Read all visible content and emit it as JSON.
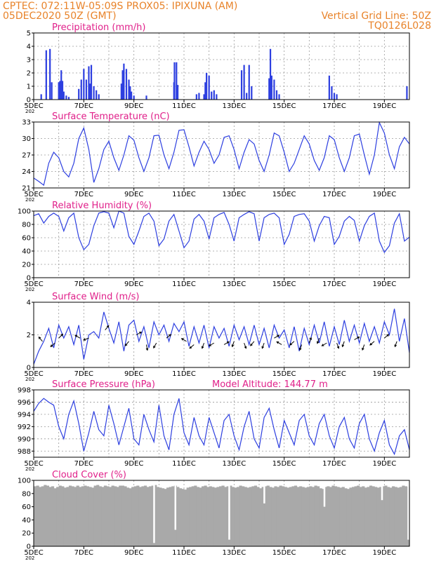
{
  "header": {
    "line1_left": "CPTEC:   072:11W-05:09S   PROX05: IPIXUNA (AM)",
    "line2_left": "05DEC2020 50Z (GMT)",
    "line2_right": "Vertical Grid Line: 50Z",
    "line3_right": "TQ0126L028"
  },
  "colors": {
    "header": "#e8832a",
    "title": "#e0208a",
    "series": "#2d3fe0",
    "cloud": "#a9a9a9",
    "grid": "#9a9a9a"
  },
  "x_axis": {
    "labels": [
      "5DEC",
      "7DEC",
      "9DEC",
      "11DEC",
      "13DEC",
      "15DEC",
      "17DEC",
      "19DEC"
    ],
    "year_fragment": "202",
    "start_day": 5,
    "end_day": 20
  },
  "chart_data": [
    {
      "type": "bar",
      "id": "precip",
      "title": "Precipitation (mm/h)",
      "ylim": [
        0,
        5
      ],
      "yticks": [
        0,
        1,
        2,
        3,
        4,
        5
      ],
      "x": [
        5.3,
        5.5,
        5.65,
        5.72,
        6.0,
        6.05,
        6.1,
        6.15,
        6.2,
        6.3,
        6.4,
        6.8,
        6.9,
        7.0,
        7.1,
        7.2,
        7.25,
        7.3,
        7.4,
        7.5,
        7.6,
        8.5,
        8.55,
        8.6,
        8.7,
        8.8,
        8.85,
        8.9,
        9.0,
        9.5,
        10.6,
        10.62,
        10.7,
        10.75,
        11.5,
        11.6,
        11.8,
        11.85,
        11.9,
        12.0,
        12.1,
        12.2,
        12.3,
        13.3,
        13.4,
        13.5,
        13.6,
        13.7,
        14.4,
        14.45,
        14.5,
        14.6,
        14.7,
        14.8,
        16.8,
        16.9,
        17.0,
        17.1,
        19.9
      ],
      "values": [
        0.4,
        3.7,
        3.8,
        1.3,
        1.3,
        1.4,
        2.2,
        1.4,
        0.6,
        0.3,
        0.2,
        0.8,
        1.5,
        2.3,
        1.5,
        2.5,
        1.2,
        2.6,
        1.0,
        0.7,
        0.4,
        1.2,
        2.2,
        2.7,
        2.3,
        1.5,
        1.0,
        0.6,
        0.3,
        0.3,
        1.3,
        2.8,
        2.8,
        1.1,
        0.4,
        0.5,
        0.4,
        1.3,
        2.0,
        1.8,
        0.6,
        0.7,
        0.4,
        2.2,
        2.6,
        0.5,
        2.6,
        1.0,
        1.6,
        3.8,
        1.8,
        1.5,
        0.7,
        0.4,
        1.8,
        1.0,
        0.5,
        0.4,
        1.0
      ]
    },
    {
      "type": "line",
      "id": "temperature",
      "title": "Surface Temperature (nC)",
      "ylim": [
        21,
        33
      ],
      "yticks": [
        21,
        24,
        27,
        30,
        33
      ],
      "x": [
        5.0,
        5.2,
        5.4,
        5.6,
        5.8,
        6.0,
        6.2,
        6.4,
        6.6,
        6.8,
        7.0,
        7.2,
        7.4,
        7.6,
        7.8,
        8.0,
        8.2,
        8.4,
        8.6,
        8.8,
        9.0,
        9.2,
        9.4,
        9.6,
        9.8,
        10.0,
        10.2,
        10.4,
        10.6,
        10.8,
        11.0,
        11.2,
        11.4,
        11.6,
        11.8,
        12.0,
        12.2,
        12.4,
        12.6,
        12.8,
        13.0,
        13.2,
        13.4,
        13.6,
        13.8,
        14.0,
        14.2,
        14.4,
        14.6,
        14.8,
        15.0,
        15.2,
        15.4,
        15.6,
        15.8,
        16.0,
        16.2,
        16.4,
        16.6,
        16.8,
        17.0,
        17.2,
        17.4,
        17.6,
        17.8,
        18.0,
        18.2,
        18.4,
        18.6,
        18.8,
        19.0,
        19.2,
        19.4,
        19.6,
        19.8,
        20.0
      ],
      "values": [
        22.8,
        22.2,
        21.5,
        25.5,
        27.5,
        26.5,
        24.0,
        23.0,
        25.5,
        30.0,
        31.9,
        28.0,
        22.0,
        24.5,
        28.0,
        29.5,
        26.5,
        24.2,
        27.0,
        30.5,
        29.7,
        26.5,
        24.0,
        26.5,
        30.5,
        30.6,
        27.0,
        24.5,
        27.5,
        31.5,
        31.6,
        28.5,
        25.0,
        27.5,
        29.5,
        28.0,
        25.5,
        27.0,
        30.2,
        30.5,
        28.0,
        24.5,
        27.5,
        29.8,
        29.0,
        26.0,
        24.0,
        27.0,
        31.0,
        30.5,
        27.5,
        24.0,
        25.5,
        28.0,
        30.5,
        29.0,
        26.0,
        24.2,
        26.5,
        30.5,
        29.8,
        26.5,
        24.0,
        26.5,
        30.5,
        30.8,
        27.0,
        23.5,
        27.0,
        32.9,
        31.0,
        27.0,
        24.5,
        28.5,
        30.2,
        29.0
      ]
    },
    {
      "type": "line",
      "id": "humidity",
      "title": "Relative Humidity (%)",
      "ylim": [
        0,
        100
      ],
      "yticks": [
        0,
        20,
        40,
        60,
        80,
        100
      ],
      "x": [
        5.0,
        5.2,
        5.4,
        5.6,
        5.8,
        6.0,
        6.2,
        6.4,
        6.6,
        6.8,
        7.0,
        7.2,
        7.4,
        7.6,
        7.8,
        8.0,
        8.2,
        8.4,
        8.6,
        8.8,
        9.0,
        9.2,
        9.4,
        9.6,
        9.8,
        10.0,
        10.2,
        10.4,
        10.6,
        10.8,
        11.0,
        11.2,
        11.4,
        11.6,
        11.8,
        12.0,
        12.2,
        12.4,
        12.6,
        12.8,
        13.0,
        13.2,
        13.4,
        13.6,
        13.8,
        14.0,
        14.2,
        14.4,
        14.6,
        14.8,
        15.0,
        15.2,
        15.4,
        15.6,
        15.8,
        16.0,
        16.2,
        16.4,
        16.6,
        16.8,
        17.0,
        17.2,
        17.4,
        17.6,
        17.8,
        18.0,
        18.2,
        18.4,
        18.6,
        18.8,
        19.0,
        19.2,
        19.4,
        19.6,
        19.8,
        20.0
      ],
      "values": [
        93,
        96,
        82,
        92,
        97,
        92,
        70,
        90,
        97,
        60,
        42,
        50,
        78,
        97,
        99,
        97,
        75,
        100,
        97,
        62,
        50,
        70,
        92,
        97,
        85,
        48,
        58,
        85,
        95,
        70,
        45,
        55,
        88,
        95,
        85,
        58,
        90,
        95,
        98,
        80,
        55,
        90,
        95,
        99,
        96,
        55,
        90,
        95,
        97,
        90,
        50,
        65,
        92,
        95,
        96,
        85,
        55,
        78,
        92,
        90,
        50,
        62,
        85,
        92,
        86,
        55,
        78,
        92,
        97,
        55,
        38,
        48,
        82,
        96,
        55,
        61
      ]
    },
    {
      "type": "line",
      "id": "wind",
      "title": "Surface Wind (m/s)",
      "ylim": [
        0,
        4
      ],
      "yticks": [
        0,
        2,
        4
      ],
      "x": [
        5.0,
        5.2,
        5.4,
        5.6,
        5.8,
        6.0,
        6.2,
        6.4,
        6.6,
        6.8,
        7.0,
        7.2,
        7.4,
        7.6,
        7.8,
        8.0,
        8.2,
        8.4,
        8.6,
        8.8,
        9.0,
        9.2,
        9.4,
        9.6,
        9.8,
        10.0,
        10.2,
        10.4,
        10.6,
        10.8,
        11.0,
        11.2,
        11.4,
        11.6,
        11.8,
        12.0,
        12.2,
        12.4,
        12.6,
        12.8,
        13.0,
        13.2,
        13.4,
        13.6,
        13.8,
        14.0,
        14.2,
        14.4,
        14.6,
        14.8,
        15.0,
        15.2,
        15.4,
        15.6,
        15.8,
        16.0,
        16.2,
        16.4,
        16.6,
        16.8,
        17.0,
        17.2,
        17.4,
        17.6,
        17.8,
        18.0,
        18.2,
        18.4,
        18.6,
        18.8,
        19.0,
        19.2,
        19.4,
        19.6,
        19.8,
        20.0
      ],
      "values": [
        0.2,
        1.0,
        1.6,
        2.4,
        1.2,
        2.6,
        1.8,
        2.5,
        1.4,
        2.6,
        0.5,
        2.0,
        2.2,
        1.8,
        3.4,
        2.4,
        1.5,
        2.8,
        1.0,
        2.6,
        2.9,
        1.6,
        2.5,
        1.2,
        2.8,
        2.0,
        2.6,
        1.6,
        2.7,
        2.2,
        2.8,
        1.3,
        2.5,
        1.5,
        2.6,
        1.2,
        2.5,
        1.8,
        2.4,
        1.3,
        2.6,
        1.7,
        2.5,
        1.4,
        2.6,
        1.4,
        2.4,
        1.2,
        2.6,
        1.8,
        2.3,
        1.2,
        2.5,
        1.0,
        2.4,
        1.4,
        2.6,
        1.5,
        2.8,
        1.3,
        2.5,
        1.4,
        2.9,
        1.6,
        2.6,
        1.5,
        2.7,
        1.6,
        2.5,
        1.5,
        2.8,
        2.0,
        3.6,
        1.6,
        3.0,
        0.9
      ],
      "arrows": [
        {
          "day": 5.35,
          "speed": 1.6,
          "to_deg": 320
        },
        {
          "day": 5.85,
          "speed": 1.5,
          "to_deg": 230
        },
        {
          "day": 6.0,
          "speed": 1.8,
          "to_deg": 45
        },
        {
          "day": 6.85,
          "speed": 1.8,
          "to_deg": 300
        },
        {
          "day": 7.2,
          "speed": 1.8,
          "to_deg": 250
        },
        {
          "day": 7.85,
          "speed": 2.3,
          "to_deg": 40
        },
        {
          "day": 8.8,
          "speed": 1.6,
          "to_deg": 220
        },
        {
          "day": 9.1,
          "speed": 2.0,
          "to_deg": 60
        },
        {
          "day": 9.5,
          "speed": 1.4,
          "to_deg": 170
        },
        {
          "day": 9.9,
          "speed": 1.5,
          "to_deg": 210
        },
        {
          "day": 10.3,
          "speed": 1.8,
          "to_deg": 50
        },
        {
          "day": 11.1,
          "speed": 1.6,
          "to_deg": 300
        },
        {
          "day": 11.4,
          "speed": 1.4,
          "to_deg": 230
        },
        {
          "day": 11.8,
          "speed": 1.5,
          "to_deg": 200
        },
        {
          "day": 12.2,
          "speed": 1.5,
          "to_deg": 240
        },
        {
          "day": 12.6,
          "speed": 1.4,
          "to_deg": 60
        },
        {
          "day": 13.0,
          "speed": 1.6,
          "to_deg": 200
        },
        {
          "day": 13.4,
          "speed": 1.5,
          "to_deg": 160
        },
        {
          "day": 13.8,
          "speed": 1.6,
          "to_deg": 220
        },
        {
          "day": 14.2,
          "speed": 1.5,
          "to_deg": 200
        },
        {
          "day": 14.6,
          "speed": 1.8,
          "to_deg": 60
        },
        {
          "day": 14.9,
          "speed": 1.4,
          "to_deg": 300
        },
        {
          "day": 15.4,
          "speed": 1.6,
          "to_deg": 230
        },
        {
          "day": 15.7,
          "speed": 1.4,
          "to_deg": 200
        },
        {
          "day": 16.0,
          "speed": 1.5,
          "to_deg": 20
        },
        {
          "day": 16.4,
          "speed": 1.8,
          "to_deg": 200
        },
        {
          "day": 16.7,
          "speed": 1.5,
          "to_deg": 240
        },
        {
          "day": 17.1,
          "speed": 1.5,
          "to_deg": 160
        },
        {
          "day": 17.4,
          "speed": 1.6,
          "to_deg": 200
        },
        {
          "day": 17.8,
          "speed": 1.7,
          "to_deg": 60
        },
        {
          "day": 18.2,
          "speed": 1.4,
          "to_deg": 200
        },
        {
          "day": 18.6,
          "speed": 1.6,
          "to_deg": 230
        },
        {
          "day": 19.0,
          "speed": 1.8,
          "to_deg": 50
        },
        {
          "day": 19.5,
          "speed": 1.6,
          "to_deg": 200
        }
      ]
    },
    {
      "type": "line",
      "id": "pressure",
      "title": "Surface Pressure (hPa)",
      "annotation": "Model Altitude: 144.77 m",
      "ylim": [
        987,
        998
      ],
      "yticks": [
        988,
        990,
        992,
        994,
        996,
        998
      ],
      "x": [
        5.0,
        5.2,
        5.4,
        5.6,
        5.8,
        6.0,
        6.2,
        6.4,
        6.6,
        6.8,
        7.0,
        7.2,
        7.4,
        7.6,
        7.8,
        8.0,
        8.2,
        8.4,
        8.6,
        8.8,
        9.0,
        9.2,
        9.4,
        9.6,
        9.8,
        10.0,
        10.2,
        10.4,
        10.6,
        10.8,
        11.0,
        11.2,
        11.4,
        11.6,
        11.8,
        12.0,
        12.2,
        12.4,
        12.6,
        12.8,
        13.0,
        13.2,
        13.4,
        13.6,
        13.8,
        14.0,
        14.2,
        14.4,
        14.6,
        14.8,
        15.0,
        15.2,
        15.4,
        15.6,
        15.8,
        16.0,
        16.2,
        16.4,
        16.6,
        16.8,
        17.0,
        17.2,
        17.4,
        17.6,
        17.8,
        18.0,
        18.2,
        18.4,
        18.6,
        18.8,
        19.0,
        19.2,
        19.4,
        19.6,
        19.8,
        20.0
      ],
      "values": [
        994.5,
        995.8,
        996.6,
        996.0,
        995.5,
        992.0,
        990.0,
        994.0,
        996.2,
        992.5,
        988.0,
        991.0,
        994.5,
        991.5,
        990.5,
        995.5,
        992.5,
        989.0,
        992.0,
        995.0,
        990.0,
        989.0,
        994.0,
        991.5,
        989.5,
        995.5,
        990.5,
        988.2,
        994.0,
        996.6,
        991.0,
        989.0,
        993.5,
        990.5,
        989.0,
        993.5,
        991.0,
        988.5,
        993.0,
        994.0,
        990.5,
        988.2,
        992.0,
        994.5,
        990.0,
        988.5,
        993.5,
        995.0,
        991.5,
        988.5,
        993.0,
        991.0,
        989.0,
        993.0,
        994.0,
        990.5,
        989.0,
        992.5,
        994.0,
        990.5,
        988.5,
        992.0,
        993.5,
        990.0,
        988.5,
        992.5,
        994.0,
        990.0,
        988.0,
        991.0,
        993.0,
        989.0,
        987.5,
        990.5,
        991.5,
        988.2
      ]
    },
    {
      "type": "bar",
      "id": "cloud",
      "title": "Cloud Cover (%)",
      "ylim": [
        0,
        100
      ],
      "yticks": [
        0,
        20,
        40,
        60,
        80,
        100
      ],
      "x": [
        5.0,
        5.1,
        5.2,
        5.3,
        5.4,
        5.5,
        5.6,
        5.7,
        5.8,
        5.9,
        6.0,
        6.1,
        6.2,
        6.3,
        6.4,
        6.5,
        6.6,
        6.7,
        6.8,
        6.9,
        7.0,
        7.1,
        7.2,
        7.3,
        7.4,
        7.5,
        7.6,
        7.7,
        7.8,
        7.9,
        8.0,
        8.1,
        8.2,
        8.3,
        8.4,
        8.5,
        8.6,
        8.7,
        8.8,
        8.9,
        9.0,
        9.1,
        9.2,
        9.3,
        9.4,
        9.5,
        9.6,
        9.7,
        9.8,
        9.9,
        10.0,
        10.1,
        10.2,
        10.3,
        10.4,
        10.5,
        10.6,
        10.7,
        10.8,
        10.9,
        11.0,
        11.1,
        11.2,
        11.3,
        11.4,
        11.5,
        11.6,
        11.7,
        11.8,
        11.9,
        12.0,
        12.1,
        12.2,
        12.3,
        12.4,
        12.5,
        12.6,
        12.7,
        12.8,
        12.9,
        13.0,
        13.1,
        13.2,
        13.3,
        13.4,
        13.5,
        13.6,
        13.7,
        13.8,
        13.9,
        14.0,
        14.1,
        14.2,
        14.3,
        14.4,
        14.5,
        14.6,
        14.7,
        14.8,
        14.9,
        15.0,
        15.1,
        15.2,
        15.3,
        15.4,
        15.5,
        15.6,
        15.7,
        15.8,
        15.9,
        16.0,
        16.1,
        16.2,
        16.3,
        16.4,
        16.5,
        16.6,
        16.7,
        16.8,
        16.9,
        17.0,
        17.1,
        17.2,
        17.3,
        17.4,
        17.5,
        17.6,
        17.7,
        17.8,
        17.9,
        18.0,
        18.1,
        18.2,
        18.3,
        18.4,
        18.5,
        18.6,
        18.7,
        18.8,
        18.9,
        19.0,
        19.1,
        19.2,
        19.3,
        19.4,
        19.5,
        19.6,
        19.7,
        19.8,
        19.9
      ],
      "values": [
        91,
        92,
        90,
        91,
        93,
        92,
        90,
        91,
        88,
        90,
        92,
        91,
        89,
        90,
        92,
        91,
        90,
        92,
        90,
        91,
        92,
        91,
        90,
        89,
        92,
        93,
        91,
        90,
        92,
        91,
        90,
        92,
        91,
        90,
        92,
        92,
        91,
        89,
        88,
        90,
        91,
        92,
        90,
        91,
        92,
        90,
        91,
        92,
        93,
        90,
        89,
        88,
        87,
        89,
        90,
        91,
        92,
        90,
        88,
        87,
        86,
        89,
        90,
        91,
        92,
        90,
        89,
        91,
        92,
        90,
        91,
        90,
        89,
        90,
        91,
        92,
        90,
        91,
        92,
        90,
        89,
        90,
        92,
        91,
        90,
        89,
        90,
        91,
        92,
        90,
        88,
        90,
        91,
        92,
        90,
        89,
        91,
        90,
        92,
        91,
        90,
        89,
        90,
        91,
        92,
        90,
        91,
        90,
        89,
        90,
        91,
        90,
        92,
        91,
        88,
        87,
        90,
        91,
        90,
        92,
        91,
        90,
        89,
        90,
        88,
        87,
        89,
        90,
        91,
        92,
        90,
        91,
        89,
        90,
        92,
        91,
        90,
        89,
        90,
        91,
        92,
        90,
        89,
        91,
        90,
        89,
        90,
        92,
        91,
        90
      ],
      "dips": [
        {
          "day": 9.8,
          "value": 5
        },
        {
          "day": 10.65,
          "value": 25
        },
        {
          "day": 12.8,
          "value": 10
        },
        {
          "day": 14.2,
          "value": 65
        },
        {
          "day": 16.6,
          "value": 60
        },
        {
          "day": 18.9,
          "value": 70
        },
        {
          "day": 19.95,
          "value": 10
        }
      ]
    }
  ]
}
